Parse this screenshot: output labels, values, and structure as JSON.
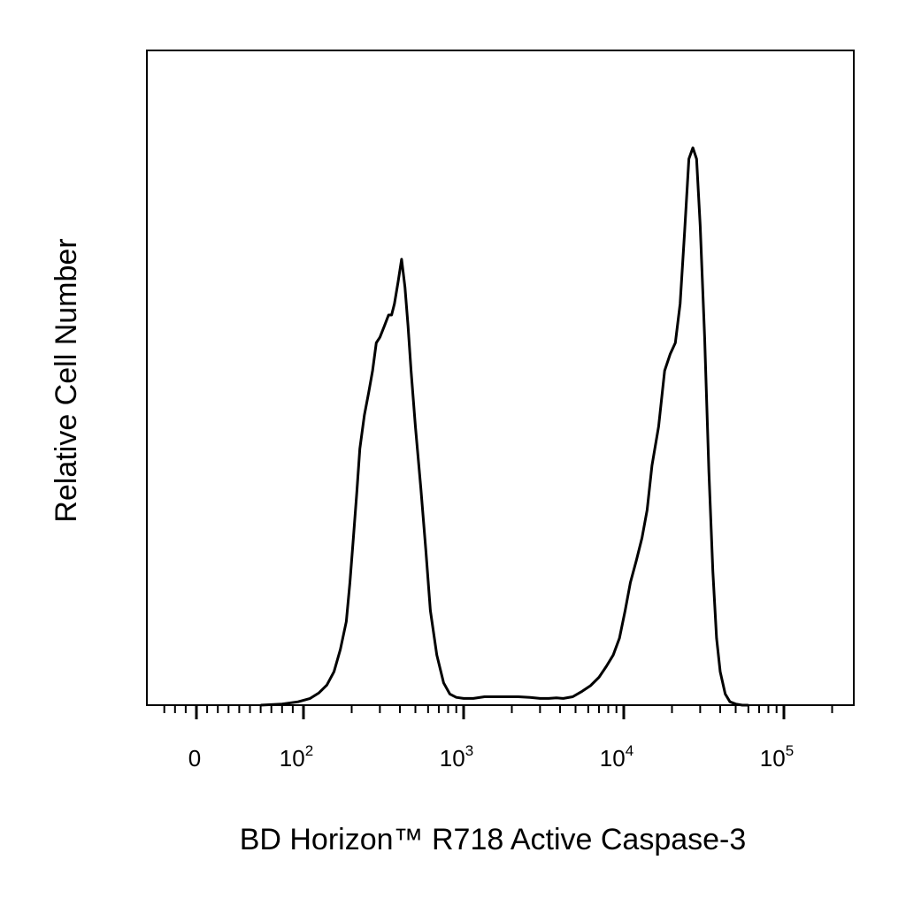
{
  "chart_data": {
    "type": "line",
    "title": "",
    "xlabel": "BD Horizon™ R718 Active Caspase-3",
    "ylabel": "Relative Cell Number",
    "xscale": "biexponential (log above 10^2)",
    "xticks": [
      {
        "value": 0,
        "base": "0",
        "exp": ""
      },
      {
        "value": 100,
        "base": "10",
        "exp": "2"
      },
      {
        "value": 1000,
        "base": "10",
        "exp": "3"
      },
      {
        "value": 10000,
        "base": "10",
        "exp": "4"
      },
      {
        "value": 100000,
        "base": "10",
        "exp": "5"
      }
    ],
    "xlim": [
      -30,
      180000
    ],
    "ylim": [
      0,
      1
    ],
    "grid": false,
    "legend": "none",
    "line_color": "#000000",
    "series": [
      {
        "x": [
          60,
          80,
          95,
          110,
          125,
          140,
          155,
          170,
          185,
          195,
          205,
          215,
          225,
          240,
          255,
          270,
          285,
          300,
          320,
          340,
          355,
          370,
          390,
          410,
          430,
          450,
          470,
          500,
          540,
          580,
          620,
          680,
          750,
          820,
          900,
          1000,
          1150,
          1350,
          1600,
          1900,
          2200,
          2600,
          3000,
          3400,
          3800,
          4200,
          4800,
          5500,
          6200,
          7000,
          7800,
          8600,
          9400,
          10200,
          11000,
          12000,
          13000,
          14000,
          15000,
          16500,
          18000,
          19500,
          21000,
          22500,
          24000,
          25500,
          27000,
          28500,
          30000,
          32000,
          34000,
          36000,
          38000,
          40000,
          43000,
          46000,
          50000,
          55000,
          60000
        ],
        "y": [
          0.0,
          0.002,
          0.006,
          0.012,
          0.022,
          0.036,
          0.06,
          0.1,
          0.15,
          0.22,
          0.3,
          0.38,
          0.46,
          0.52,
          0.56,
          0.6,
          0.65,
          0.66,
          0.68,
          0.7,
          0.7,
          0.72,
          0.76,
          0.8,
          0.75,
          0.68,
          0.6,
          0.5,
          0.39,
          0.28,
          0.17,
          0.09,
          0.04,
          0.02,
          0.014,
          0.012,
          0.012,
          0.015,
          0.015,
          0.015,
          0.015,
          0.014,
          0.012,
          0.012,
          0.013,
          0.012,
          0.015,
          0.025,
          0.035,
          0.05,
          0.07,
          0.09,
          0.12,
          0.17,
          0.22,
          0.26,
          0.3,
          0.35,
          0.43,
          0.5,
          0.6,
          0.63,
          0.65,
          0.72,
          0.85,
          0.98,
          1.0,
          0.98,
          0.86,
          0.66,
          0.42,
          0.24,
          0.12,
          0.06,
          0.02,
          0.006,
          0.002,
          0.0,
          0.0
        ]
      }
    ]
  }
}
